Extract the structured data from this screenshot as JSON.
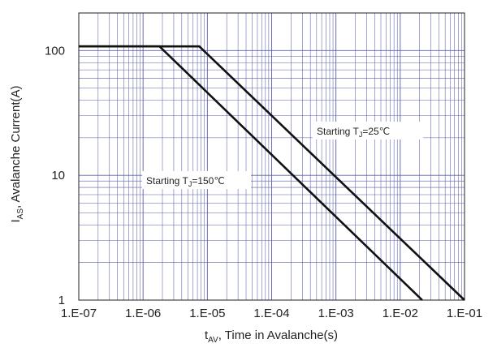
{
  "chart_data": {
    "type": "line",
    "xscale": "log",
    "yscale": "log",
    "xlim": [
      1e-07,
      0.1
    ],
    "ylim": [
      1,
      200
    ],
    "grid": true,
    "x_tick_labels": [
      "1.E-07",
      "1.E-06",
      "1.E-05",
      "1.E-04",
      "1.E-03",
      "1.E-02",
      "1.E-01"
    ],
    "y_tick_labels": [
      "1",
      "10",
      "100"
    ],
    "xlabel": {
      "main": "t",
      "sub": "AV",
      "rest": ", Time in Avalanche(s)"
    },
    "ylabel": {
      "main": "I",
      "sub": "AS",
      "rest": ", Avalanche Current(A)"
    },
    "annotations": [
      {
        "prefix": "Starting T",
        "sub": "J",
        "suffix": "=25℃"
      },
      {
        "prefix": "Starting T",
        "sub": "J",
        "suffix": "=150℃"
      }
    ],
    "series": [
      {
        "x": [
          1e-07,
          7.5e-06,
          0.1
        ],
        "y": [
          108,
          108,
          1
        ]
      },
      {
        "x": [
          1e-07,
          1.8e-06,
          0.022
        ],
        "y": [
          108,
          108,
          1
        ]
      }
    ],
    "line_color": "#111111",
    "grid_color": "#5a5fa8"
  }
}
